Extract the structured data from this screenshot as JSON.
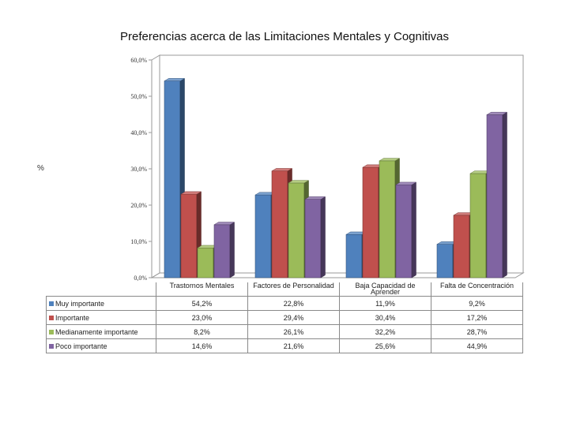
{
  "chart_data": {
    "type": "bar",
    "title": "Preferencias acerca de las Limitaciones Mentales y Cognitivas",
    "ylabel": "%",
    "xlabel": "",
    "ylim": [
      0,
      60
    ],
    "yticks": [
      "0,0%",
      "10,0%",
      "20,0%",
      "30,0%",
      "40,0%",
      "50,0%",
      "60,0%"
    ],
    "categories": [
      "Trastornos Mentales",
      "Factores de Personalidad",
      "Baja Capacidad de Aprender",
      "Falta de Concentración"
    ],
    "series": [
      {
        "name": "Muy importante",
        "color": "#4f81bd",
        "values": [
          54.2,
          22.8,
          11.9,
          9.2
        ],
        "labels": [
          "54,2%",
          "22,8%",
          "11,9%",
          "9,2%"
        ]
      },
      {
        "name": "Importante",
        "color": "#c0504d",
        "values": [
          23.0,
          29.4,
          30.4,
          17.2
        ],
        "labels": [
          "23,0%",
          "29,4%",
          "30,4%",
          "17,2%"
        ]
      },
      {
        "name": "Medianamente importante",
        "color": "#9bbb59",
        "values": [
          8.2,
          26.1,
          32.2,
          28.7
        ],
        "labels": [
          "8,2%",
          "26,1%",
          "32,2%",
          "28,7%"
        ]
      },
      {
        "name": "Poco importante",
        "color": "#8064a2",
        "values": [
          14.6,
          21.6,
          25.6,
          44.9
        ],
        "labels": [
          "14,6%",
          "21,6%",
          "25,6%",
          "44,9%"
        ]
      }
    ],
    "legend": "data-table-left",
    "grid": false
  }
}
